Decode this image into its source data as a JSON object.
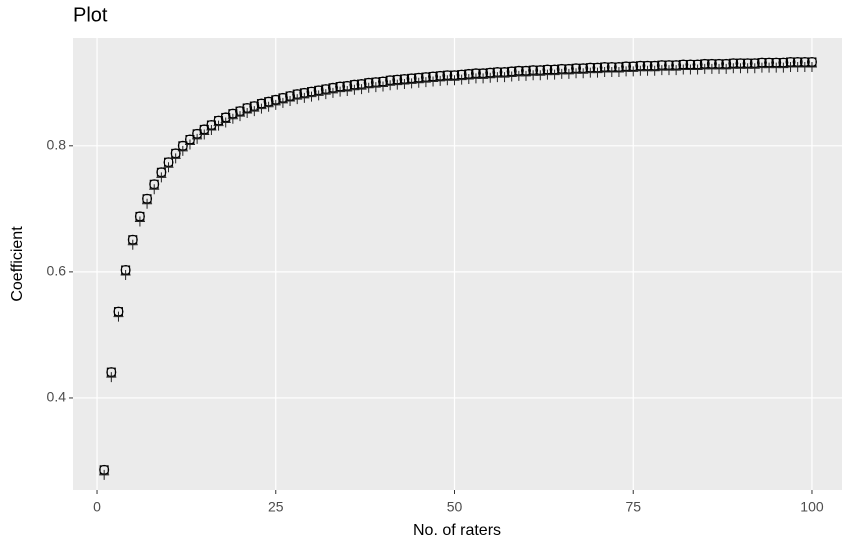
{
  "chart_data": {
    "type": "scatter",
    "title": "Plot",
    "x_label": "No. of raters",
    "y_label": "Coefficient",
    "xlim": [
      -3.36,
      104.2
    ],
    "ylim": [
      0.254,
      0.971
    ],
    "xticks": [
      0,
      25,
      50,
      75,
      100
    ],
    "yticks": [
      0.4,
      0.6,
      0.8
    ],
    "grid": true,
    "x": [
      1,
      2,
      3,
      4,
      5,
      6,
      7,
      8,
      9,
      10,
      11,
      12,
      13,
      14,
      15,
      16,
      17,
      18,
      19,
      20,
      21,
      22,
      23,
      24,
      25,
      26,
      27,
      28,
      29,
      30,
      31,
      32,
      33,
      34,
      35,
      36,
      37,
      38,
      39,
      40,
      41,
      42,
      43,
      44,
      45,
      46,
      47,
      48,
      49,
      50,
      51,
      52,
      53,
      54,
      55,
      56,
      57,
      58,
      59,
      60,
      61,
      62,
      63,
      64,
      65,
      66,
      67,
      68,
      69,
      70,
      71,
      72,
      73,
      74,
      75,
      76,
      77,
      78,
      79,
      80,
      81,
      82,
      83,
      84,
      85,
      86,
      87,
      88,
      89,
      90,
      91,
      92,
      93,
      94,
      95,
      96,
      97,
      98,
      99,
      100
    ],
    "series": [
      {
        "shape": "circle",
        "color": "#000000",
        "values": [
          0.286,
          0.441,
          0.537,
          0.603,
          0.651,
          0.688,
          0.716,
          0.739,
          0.758,
          0.774,
          0.788,
          0.8,
          0.81,
          0.819,
          0.826,
          0.833,
          0.84,
          0.845,
          0.851,
          0.855,
          0.86,
          0.863,
          0.867,
          0.87,
          0.873,
          0.876,
          0.879,
          0.882,
          0.884,
          0.886,
          0.888,
          0.89,
          0.892,
          0.894,
          0.895,
          0.897,
          0.898,
          0.9,
          0.901,
          0.902,
          0.904,
          0.905,
          0.906,
          0.907,
          0.908,
          0.909,
          0.91,
          0.911,
          0.912,
          0.912,
          0.913,
          0.914,
          0.915,
          0.915,
          0.916,
          0.917,
          0.917,
          0.918,
          0.919,
          0.919,
          0.92,
          0.92,
          0.921,
          0.921,
          0.922,
          0.922,
          0.923,
          0.923,
          0.924,
          0.924,
          0.925,
          0.925,
          0.925,
          0.926,
          0.926,
          0.927,
          0.927,
          0.927,
          0.928,
          0.928,
          0.928,
          0.929,
          0.929,
          0.929,
          0.93,
          0.93,
          0.93,
          0.93,
          0.931,
          0.931,
          0.931,
          0.931,
          0.932,
          0.932,
          0.932,
          0.932,
          0.933,
          0.933,
          0.933,
          0.933
        ]
      },
      {
        "shape": "square",
        "color": "#000000",
        "values": [
          0.286,
          0.441,
          0.537,
          0.603,
          0.651,
          0.688,
          0.716,
          0.739,
          0.758,
          0.774,
          0.788,
          0.8,
          0.81,
          0.819,
          0.826,
          0.833,
          0.84,
          0.845,
          0.851,
          0.855,
          0.86,
          0.863,
          0.867,
          0.87,
          0.873,
          0.876,
          0.879,
          0.882,
          0.884,
          0.886,
          0.888,
          0.89,
          0.892,
          0.894,
          0.895,
          0.897,
          0.898,
          0.9,
          0.901,
          0.902,
          0.904,
          0.905,
          0.906,
          0.907,
          0.908,
          0.909,
          0.91,
          0.911,
          0.912,
          0.912,
          0.913,
          0.914,
          0.915,
          0.915,
          0.916,
          0.917,
          0.917,
          0.918,
          0.919,
          0.919,
          0.92,
          0.92,
          0.921,
          0.921,
          0.922,
          0.922,
          0.923,
          0.923,
          0.924,
          0.924,
          0.925,
          0.925,
          0.925,
          0.926,
          0.926,
          0.927,
          0.927,
          0.927,
          0.928,
          0.928,
          0.928,
          0.929,
          0.929,
          0.929,
          0.93,
          0.93,
          0.93,
          0.93,
          0.931,
          0.931,
          0.931,
          0.931,
          0.932,
          0.932,
          0.932,
          0.932,
          0.933,
          0.933,
          0.933,
          0.933
        ]
      },
      {
        "shape": "plus",
        "color": "#222222",
        "values": [
          0.278,
          0.433,
          0.529,
          0.595,
          0.643,
          0.68,
          0.708,
          0.731,
          0.75,
          0.766,
          0.78,
          0.792,
          0.802,
          0.811,
          0.818,
          0.825,
          0.832,
          0.837,
          0.843,
          0.847,
          0.852,
          0.855,
          0.859,
          0.862,
          0.865,
          0.868,
          0.871,
          0.874,
          0.876,
          0.878,
          0.88,
          0.882,
          0.884,
          0.886,
          0.887,
          0.889,
          0.89,
          0.892,
          0.893,
          0.894,
          0.896,
          0.897,
          0.898,
          0.899,
          0.9,
          0.901,
          0.902,
          0.903,
          0.904,
          0.904,
          0.905,
          0.906,
          0.907,
          0.907,
          0.908,
          0.909,
          0.909,
          0.91,
          0.911,
          0.911,
          0.912,
          0.912,
          0.913,
          0.913,
          0.914,
          0.914,
          0.915,
          0.915,
          0.916,
          0.916,
          0.917,
          0.917,
          0.917,
          0.918,
          0.918,
          0.919,
          0.919,
          0.919,
          0.92,
          0.92,
          0.92,
          0.921,
          0.921,
          0.921,
          0.922,
          0.922,
          0.922,
          0.922,
          0.923,
          0.923,
          0.923,
          0.923,
          0.924,
          0.924,
          0.924,
          0.924,
          0.925,
          0.925,
          0.925,
          0.925
        ]
      }
    ]
  }
}
